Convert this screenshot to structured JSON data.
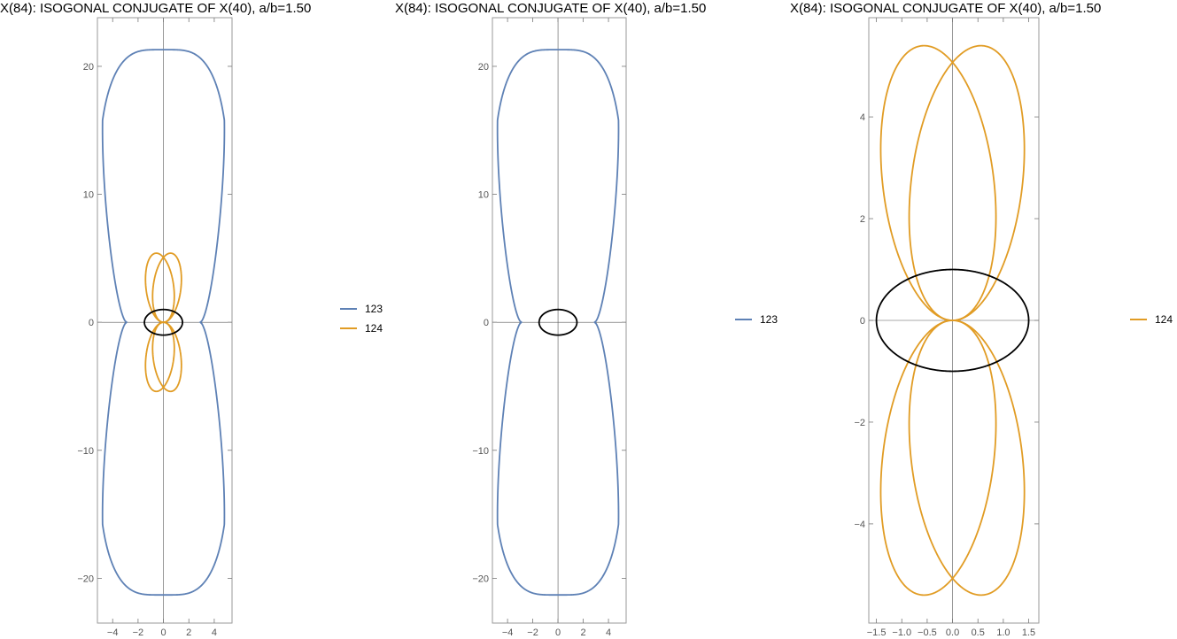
{
  "colors": {
    "series_123": "#5E81B5",
    "series_124": "#E19C24",
    "circumconic": "#000000"
  },
  "chart_data": [
    {
      "type": "line",
      "title": "X(84): ISOGONAL CONJUGATE OF X(40), a/b=1.50",
      "xlim": [
        -5.2,
        5.4
      ],
      "ylim": [
        -23.5,
        23.8
      ],
      "xticks": [
        -4,
        -2,
        0,
        2,
        4
      ],
      "yticks": [
        -20,
        -10,
        0,
        10,
        20
      ],
      "xtick_labels": [
        "−4",
        "−2",
        "0",
        "2",
        "4"
      ],
      "ytick_labels": [
        "−20",
        "−10",
        "0",
        "10",
        "20"
      ],
      "grid": false,
      "legend_position": "right",
      "series": [
        {
          "name": "123",
          "color": "#5E81B5",
          "shape": "peanut",
          "params": {
            "Y": 21.3,
            "W": 4.8,
            "N": 2.9
          }
        },
        {
          "name": "124",
          "color": "#E19C24",
          "shape": "petals",
          "params": {
            "Y": 5.4,
            "W": 1.1,
            "D": 0.28
          }
        },
        {
          "name": "",
          "color": "#000000",
          "shape": "ellipse",
          "params": {
            "a": 1.5,
            "b": 1.0
          }
        }
      ],
      "legend": [
        "123",
        "124"
      ]
    },
    {
      "type": "line",
      "title": "X(84): ISOGONAL CONJUGATE OF X(40), a/b=1.50",
      "xlim": [
        -5.2,
        5.4
      ],
      "ylim": [
        -23.5,
        23.8
      ],
      "xticks": [
        -4,
        -2,
        0,
        2,
        4
      ],
      "yticks": [
        -20,
        -10,
        0,
        10,
        20
      ],
      "xtick_labels": [
        "−4",
        "−2",
        "0",
        "2",
        "4"
      ],
      "ytick_labels": [
        "−20",
        "−10",
        "0",
        "10",
        "20"
      ],
      "grid": false,
      "legend_position": "right",
      "series": [
        {
          "name": "123",
          "color": "#5E81B5",
          "shape": "peanut",
          "params": {
            "Y": 21.3,
            "W": 4.8,
            "N": 2.9
          }
        },
        {
          "name": "",
          "color": "#000000",
          "shape": "ellipse",
          "params": {
            "a": 1.5,
            "b": 1.0
          }
        }
      ],
      "legend": [
        "123"
      ]
    },
    {
      "type": "line",
      "title": "X(84): ISOGONAL CONJUGATE OF X(40), a/b=1.50",
      "xlim": [
        -1.65,
        1.7
      ],
      "ylim": [
        -5.95,
        5.95
      ],
      "xticks": [
        -1.5,
        -1.0,
        -0.5,
        0.0,
        0.5,
        1.0,
        1.5
      ],
      "yticks": [
        -4,
        -2,
        0,
        2,
        4
      ],
      "xtick_labels": [
        "−1.5",
        "−1.0",
        "−0.5",
        "0.0",
        "0.5",
        "1.0",
        "1.5"
      ],
      "ytick_labels": [
        "−4",
        "−2",
        "0",
        "2",
        "4"
      ],
      "grid": false,
      "legend_position": "right",
      "series": [
        {
          "name": "124",
          "color": "#E19C24",
          "shape": "petals",
          "params": {
            "Y": 5.4,
            "W": 1.1,
            "D": 0.28
          }
        },
        {
          "name": "",
          "color": "#000000",
          "shape": "ellipse",
          "params": {
            "a": 1.5,
            "b": 1.0
          }
        }
      ],
      "legend": [
        "124"
      ]
    }
  ]
}
